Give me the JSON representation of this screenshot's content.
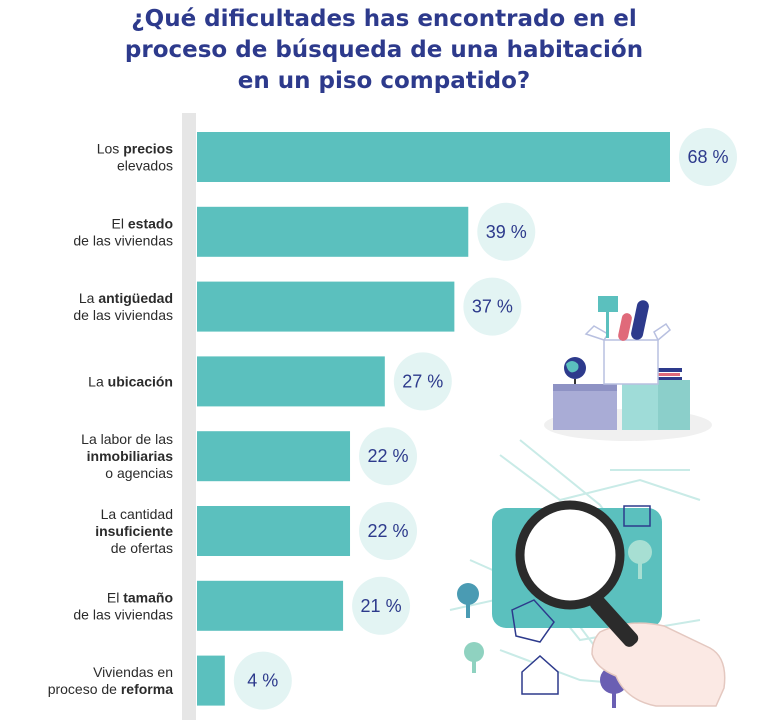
{
  "title_lines": [
    "¿Qué dificultades has encontrado en el",
    "proceso de búsqueda de una habitación",
    "en un piso compatido?"
  ],
  "colors": {
    "title": "#2d3a8c",
    "bar": "#5bc0be",
    "bubble": "#e3f4f3",
    "value_text": "#2d3a8c",
    "axis_strip": "#e6e6e6"
  },
  "chart_data": {
    "type": "bar",
    "orientation": "horizontal",
    "title": "¿Qué dificultades has encontrado en el proceso de búsqueda de una habitación en un piso compatido?",
    "categories": [
      "Los precios elevados",
      "El estado de las viviendas",
      "La antigüedad de las viviendas",
      "La ubicación",
      "La labor de las inmobiliarias o agencias",
      "La cantidad insuficiente de ofertas",
      "El tamaño de las viviendas",
      "Viviendas en proceso de reforma"
    ],
    "label_lines": [
      [
        [
          [
            "Los ",
            false
          ],
          [
            "precios",
            true
          ]
        ],
        [
          [
            "elevados",
            false
          ]
        ]
      ],
      [
        [
          [
            "El ",
            false
          ],
          [
            "estado",
            true
          ]
        ],
        [
          [
            "de las viviendas",
            false
          ]
        ]
      ],
      [
        [
          [
            "La ",
            false
          ],
          [
            "antigüedad",
            true
          ]
        ],
        [
          [
            "de las viviendas",
            false
          ]
        ]
      ],
      [
        [
          [
            "La ",
            false
          ],
          [
            "ubicación",
            true
          ]
        ]
      ],
      [
        [
          [
            "La labor de las",
            false
          ]
        ],
        [
          [
            "inmobiliarias",
            true
          ]
        ],
        [
          [
            "o agencias",
            false
          ]
        ]
      ],
      [
        [
          [
            "La cantidad",
            false
          ]
        ],
        [
          [
            "insuficiente",
            true
          ]
        ],
        [
          [
            "de ofertas",
            false
          ]
        ]
      ],
      [
        [
          [
            "El ",
            false
          ],
          [
            "tamaño",
            true
          ]
        ],
        [
          [
            "de las viviendas",
            false
          ]
        ]
      ],
      [
        [
          [
            "Viviendas en",
            false
          ]
        ],
        [
          [
            "proceso de ",
            false
          ],
          [
            "reforma",
            true
          ]
        ]
      ]
    ],
    "values": [
      68,
      39,
      37,
      27,
      22,
      22,
      21,
      4
    ],
    "value_labels": [
      "68 %",
      "39 %",
      "37 %",
      "27 %",
      "22 %",
      "22 %",
      "21 %",
      "4 %"
    ],
    "unit": "%",
    "xlim": [
      0,
      68
    ]
  },
  "decorations": {
    "moving_boxes_icon": "moving-boxes-icon",
    "map_magnifier_icon": "map-magnifier-icon"
  }
}
